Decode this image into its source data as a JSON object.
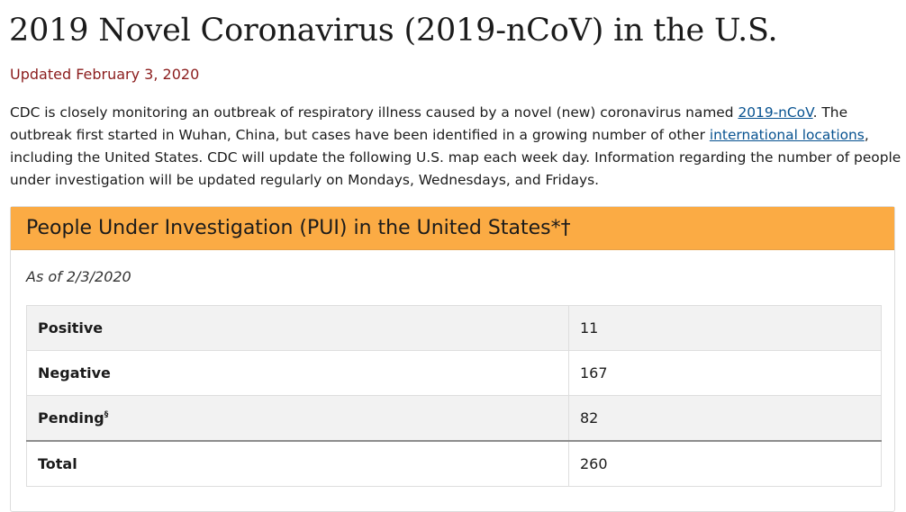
{
  "header": {
    "title": "2019 Novel Coronavirus (2019-nCoV) in the U.S.",
    "updated": "Updated February 3, 2020"
  },
  "intro": {
    "text_1": "CDC is closely monitoring an outbreak of respiratory illness caused by a novel (new) coronavirus named ",
    "link_1": "2019-nCoV",
    "text_2": ". The outbreak first started in Wuhan, China, but cases have been identified in a growing number of other ",
    "link_2": "international locations",
    "text_3": ", including the United States. CDC will update the following U.S. map each week day. Information regarding the number of people under investigation will be updated regularly on Mondays, Wednesdays, and Fridays."
  },
  "card": {
    "title": "People Under Investigation (PUI) in the United States*†",
    "as_of": "As of 2/3/2020",
    "header_color": "#fbab44"
  },
  "table": {
    "rows": [
      {
        "label": "Positive",
        "value": "11"
      },
      {
        "label": "Negative",
        "value": "167"
      },
      {
        "label": "Pending",
        "sup": "§",
        "value": "82"
      }
    ],
    "total": {
      "label": "Total",
      "value": "260"
    }
  }
}
